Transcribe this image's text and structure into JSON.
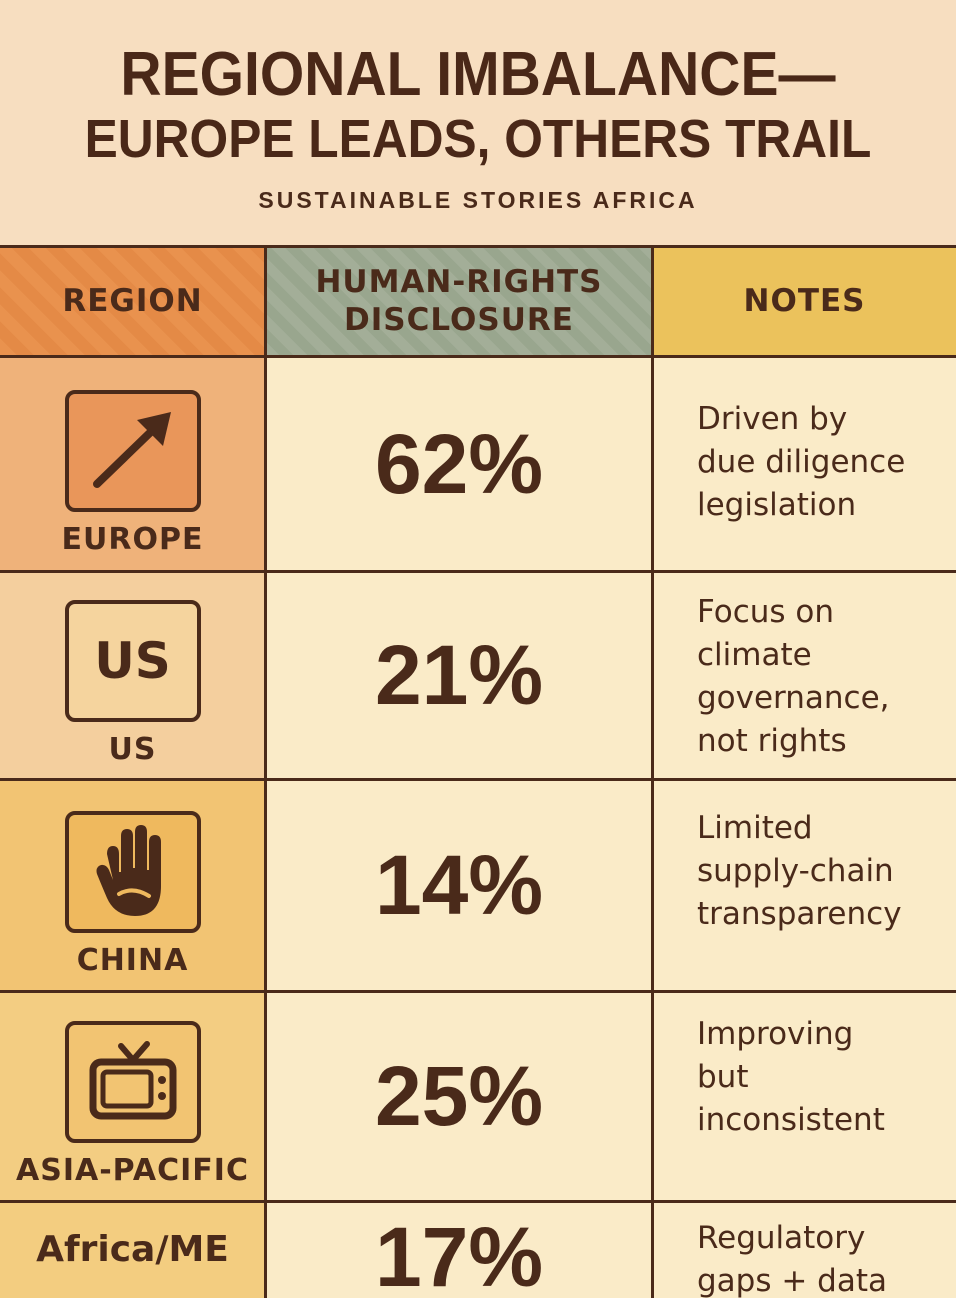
{
  "header": {
    "title_line1": "REGIONAL IMBALANCE—",
    "title_line2": "EUROPE LEADS, OTHERS TRAIL",
    "subtitle": "SUSTAINABLE STORIES AFRICA"
  },
  "table": {
    "columns": [
      "REGION",
      "HUMAN-RIGHTS\nDISCLOSURE",
      "NOTES"
    ],
    "rows": [
      {
        "region": "EUROPE",
        "icon": "arrow-up-right-icon",
        "icon_text": "",
        "value": "62%",
        "note_lines": [
          "Driven by",
          "due diligence",
          "legislation"
        ]
      },
      {
        "region": "US",
        "icon": "us-text-icon",
        "icon_text": "US",
        "value": "21%",
        "note_lines": [
          "Focus on",
          "climate",
          "governance,",
          "not rights"
        ]
      },
      {
        "region": "CHINA",
        "icon": "hand-icon",
        "icon_text": "",
        "value": "14%",
        "note_lines": [
          "Limited",
          "supply-chain",
          "transparency"
        ]
      },
      {
        "region": "ASIA-PACIFIC",
        "icon": "tv-icon",
        "icon_text": "",
        "value": "25%",
        "note_lines": [
          "Improving",
          "but",
          "inconsistent"
        ]
      },
      {
        "region": "Africa/ME",
        "icon": "",
        "icon_text": "",
        "value": "17%",
        "note_lines": [
          "Regulatory",
          "gaps + data"
        ]
      }
    ]
  },
  "colors": {
    "ink": "#4a2a1a",
    "region_header": "#e48a46",
    "disclosure_header": "#9ea993",
    "notes_header": "#ebc25c",
    "body_bg": "#faebc8"
  }
}
